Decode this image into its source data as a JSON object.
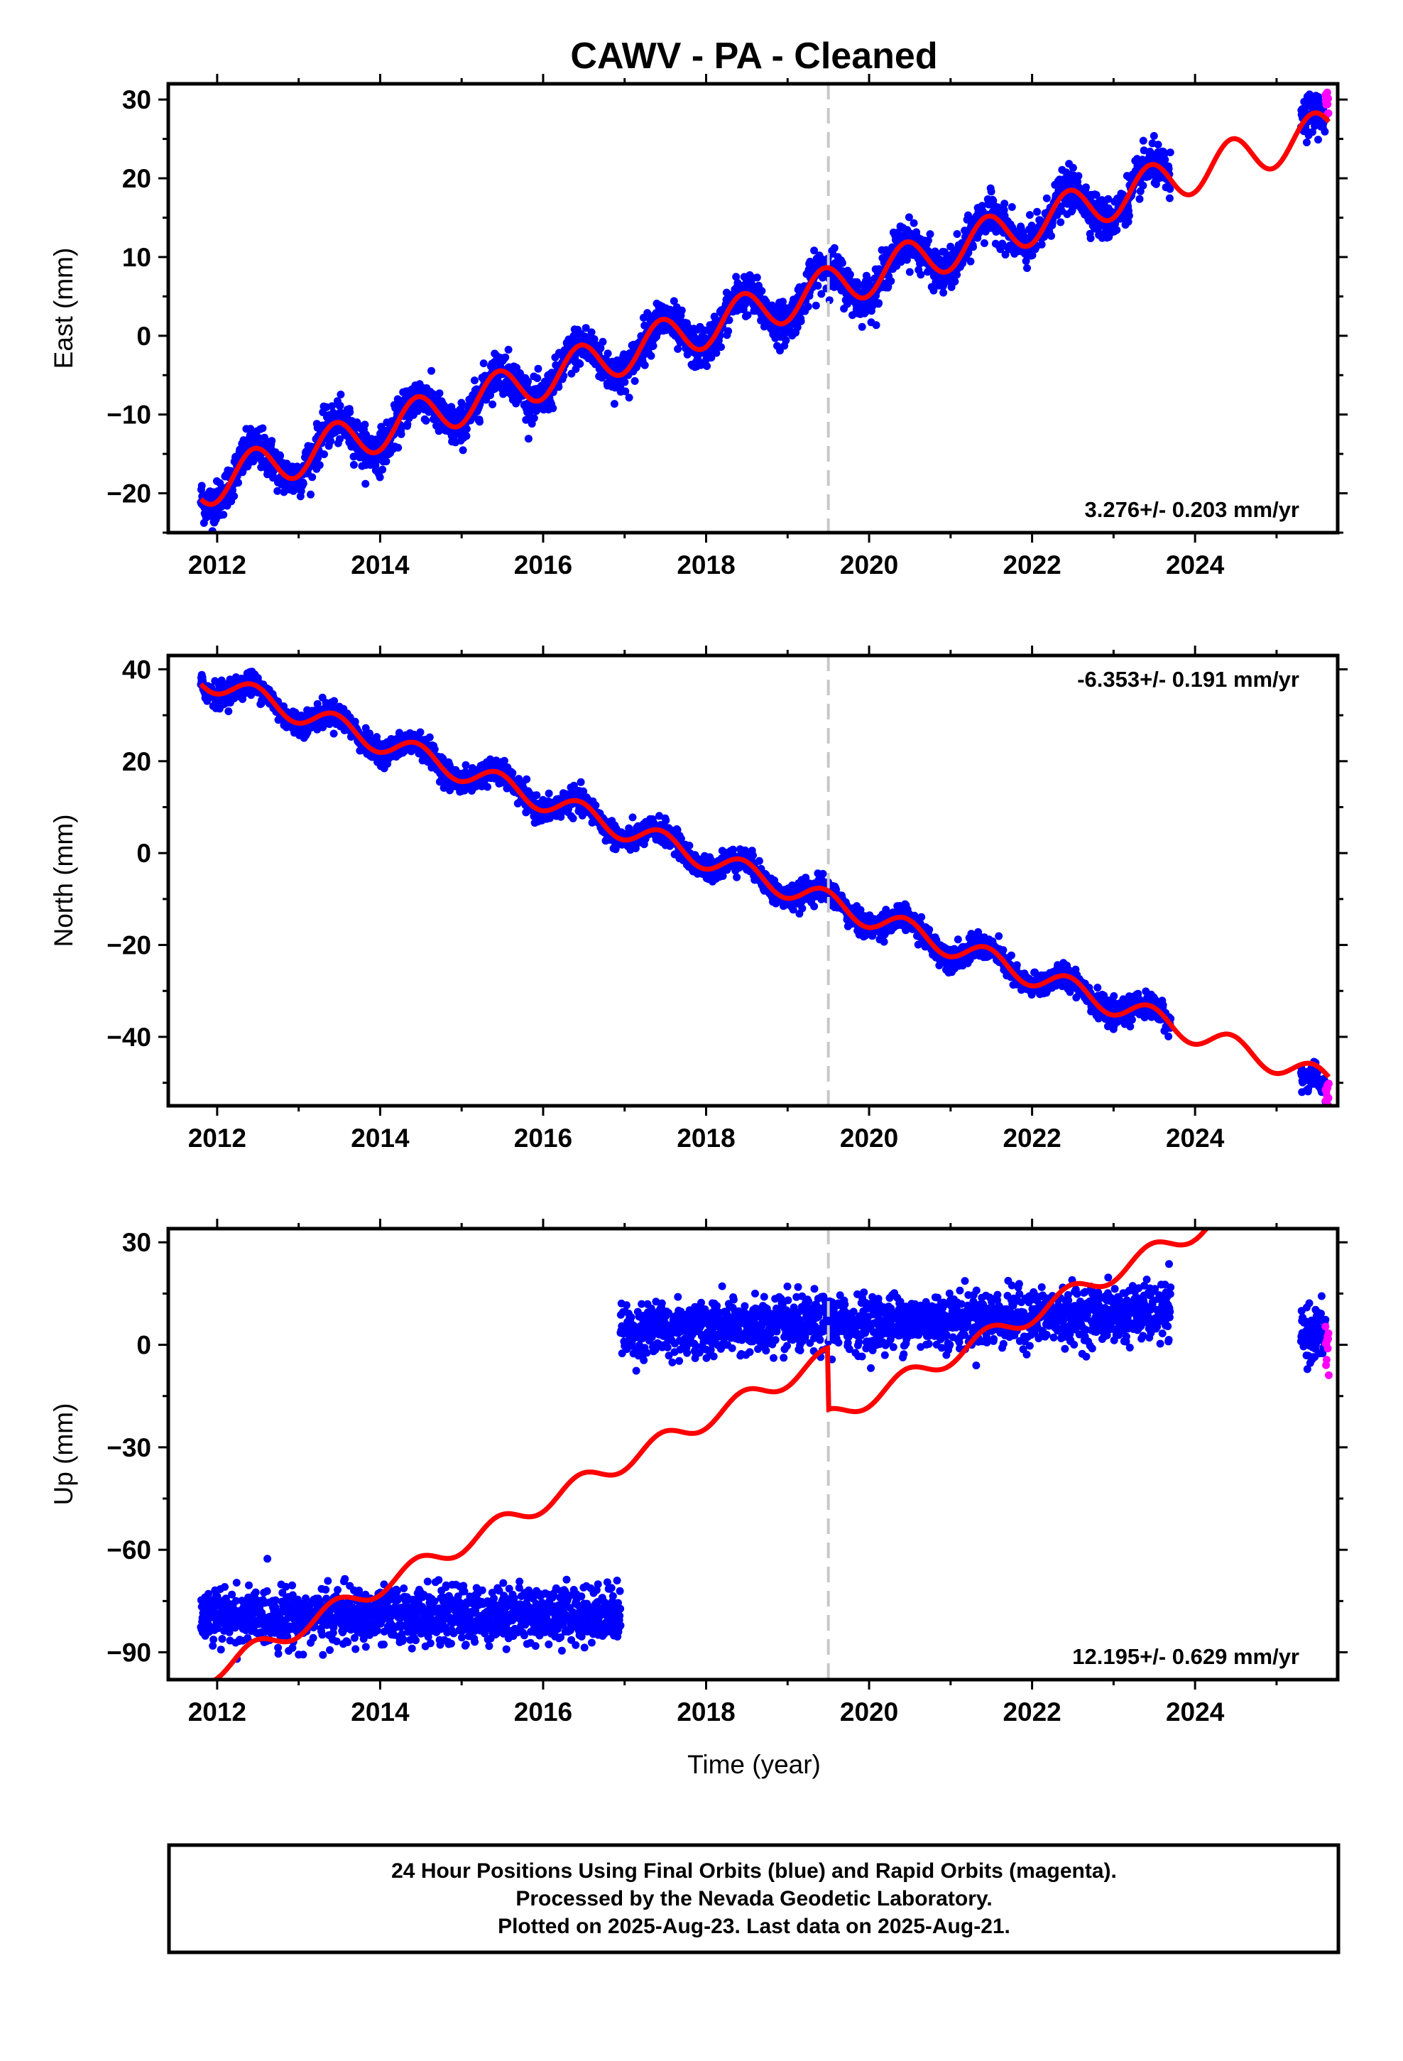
{
  "footer_lines": [
    "24 Hour Positions Using Final Orbits (blue) and Rapid Orbits (magenta).",
    "Processed by the Nevada Geodetic Laboratory.",
    "Plotted on 2025-Aug-23. Last data on 2025-Aug-21."
  ],
  "colors": {
    "final_orbits": "#0000ff",
    "rapid_orbits": "#ff00ff",
    "model_fit": "#ff0000",
    "equipment_change": "#c8c8c8"
  },
  "chart_data": [
    {
      "type": "scatter",
      "title": "CAWV  - PA - Cleaned",
      "xlabel": "",
      "ylabel": "East (mm)",
      "xlim": [
        2011.4,
        2025.75
      ],
      "ylim": [
        -25,
        32
      ],
      "xticks": [
        2012,
        2014,
        2016,
        2018,
        2020,
        2022,
        2024
      ],
      "yticks": [
        -20,
        -10,
        0,
        10,
        20,
        30
      ],
      "rate": "3.276+/- 0.203 mm/yr",
      "rate_pos": "bottom-right",
      "step_epoch": 2019.5,
      "series": [
        {
          "name": "Final Orbits",
          "color": "#0000ff",
          "x_range": [
            2011.8,
            2023.7
          ],
          "trend": {
            "slope": 3.276,
            "at_2012": -18.5
          },
          "annual_amplitude": 2.7,
          "scatter": 1.3,
          "offset": 0
        },
        {
          "name": "Final Orbits",
          "color": "#0000ff",
          "x_range": [
            2025.3,
            2025.6
          ],
          "trend": {
            "slope": 3.276,
            "at_2012": -18.5
          },
          "annual_amplitude": 2.7,
          "scatter": 1.3,
          "offset": 0
        },
        {
          "name": "Rapid Orbits",
          "color": "#ff00ff",
          "x_range": [
            2025.6,
            2025.64
          ],
          "trend": {
            "slope": 3.276,
            "at_2012": -18.5
          },
          "annual_amplitude": 2.7,
          "scatter": 2,
          "offset": 2
        }
      ],
      "model": {
        "color": "#ff0000",
        "x_range": [
          2011.8,
          2025.64
        ],
        "slope": 3.276,
        "at_2012": -18.5,
        "annual_amplitude": 2.7,
        "step_at": 2019.5,
        "step_size": 0
      }
    },
    {
      "type": "scatter",
      "title": "",
      "xlabel": "",
      "ylabel": "North (mm)",
      "xlim": [
        2011.4,
        2025.75
      ],
      "ylim": [
        -55,
        43
      ],
      "xticks": [
        2012,
        2014,
        2016,
        2018,
        2020,
        2022,
        2024
      ],
      "yticks": [
        -40,
        -20,
        0,
        20,
        40
      ],
      "rate": "-6.353+/- 0.191 mm/yr",
      "rate_pos": "top-right",
      "step_epoch": 2019.5,
      "series": [
        {
          "name": "Final Orbits",
          "color": "#0000ff",
          "x_range": [
            2011.8,
            2023.7
          ],
          "trend": {
            "slope": -6.353,
            "at_2012": 37
          },
          "annual_amplitude": 2.5,
          "scatter": 1.3,
          "offset": 0
        },
        {
          "name": "Final Orbits",
          "color": "#0000ff",
          "x_range": [
            2025.3,
            2025.6
          ],
          "trend": {
            "slope": -6.353,
            "at_2012": 37
          },
          "annual_amplitude": 2.5,
          "scatter": 1.3,
          "offset": -3
        },
        {
          "name": "Rapid Orbits",
          "color": "#ff00ff",
          "x_range": [
            2025.6,
            2025.64
          ],
          "trend": {
            "slope": -6.353,
            "at_2012": 37
          },
          "annual_amplitude": 2.5,
          "scatter": 2,
          "offset": -4
        }
      ],
      "model": {
        "color": "#ff0000",
        "x_range": [
          2011.8,
          2025.64
        ],
        "slope": -6.353,
        "at_2012": 37,
        "annual_amplitude": 2.5,
        "step_at": 2019.5,
        "step_size": 0
      }
    },
    {
      "type": "scatter",
      "title": "",
      "xlabel": "Time (year)",
      "ylabel": "Up (mm)",
      "xlim": [
        2011.4,
        2025.75
      ],
      "ylim": [
        -98,
        34
      ],
      "xticks": [
        2012,
        2014,
        2016,
        2018,
        2020,
        2022,
        2024
      ],
      "yticks": [
        -90,
        -60,
        -30,
        0,
        30
      ],
      "rate": "12.195+/- 0.629 mm/yr",
      "rate_pos": "bottom-right",
      "step_epoch": 2019.5,
      "series": [
        {
          "name": "Final Orbits",
          "color": "#0000ff",
          "x_range": [
            2011.8,
            2016.95
          ],
          "level": -80,
          "level_slope": 0.3,
          "scatter": 4,
          "offset": 0
        },
        {
          "name": "Final Orbits",
          "color": "#0000ff",
          "x_range": [
            2016.95,
            2023.7
          ],
          "level": 4,
          "level_slope": 0.8,
          "scatter": 4,
          "offset": 0
        },
        {
          "name": "Final Orbits",
          "color": "#0000ff",
          "x_range": [
            2025.3,
            2025.6
          ],
          "level": 3,
          "level_slope": 0,
          "scatter": 4,
          "offset": 0
        },
        {
          "name": "Rapid Orbits",
          "color": "#ff00ff",
          "x_range": [
            2025.6,
            2025.64
          ],
          "level": 0,
          "level_slope": 0,
          "scatter": 6,
          "offset": 0
        }
      ],
      "model": {
        "color": "#ff0000",
        "x_range": [
          2011.8,
          2025.64
        ],
        "slope": 12.195,
        "at_2012": -95,
        "annual_amplitude": 2.8,
        "step_at": 2019.5,
        "step_size": -18
      }
    }
  ]
}
